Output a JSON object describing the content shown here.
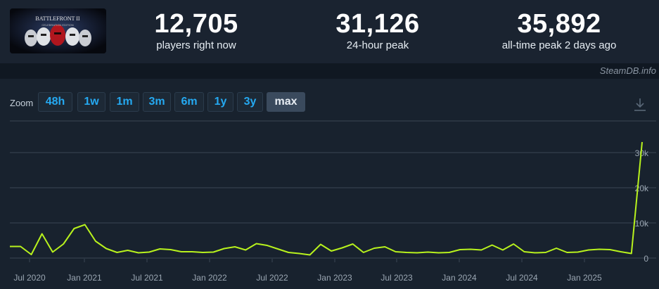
{
  "stats": {
    "current": {
      "value": "12,705",
      "label": "players right now"
    },
    "peak24": {
      "value": "31,126",
      "label": "24-hour peak"
    },
    "alltime": {
      "value": "35,892",
      "label": "all-time peak 2 days ago"
    }
  },
  "watermark": "SteamDB.info",
  "zoom": {
    "label": "Zoom",
    "options": [
      "48h",
      "1w",
      "1m",
      "3m",
      "6m",
      "1y",
      "3y",
      "max"
    ],
    "active": "max"
  },
  "icons": {
    "download": "download-icon",
    "thumbnail": "game-capsule-image"
  },
  "colors": {
    "line": "#b8f21d",
    "button_text": "#25a9f1",
    "grid": "#3a4654",
    "axis_text": "#9aa6b2"
  },
  "chart_data": {
    "type": "line",
    "title": "",
    "xlabel": "",
    "ylabel": "",
    "x_tick_labels": [
      "Jul 2020",
      "Jan 2021",
      "Jul 2021",
      "Jan 2022",
      "Jul 2022",
      "Jan 2023",
      "Jul 2023",
      "Jan 2024",
      "Jul 2024",
      "Jan 2025"
    ],
    "y_tick_labels": [
      "0",
      "10k",
      "20k",
      "30k"
    ],
    "ylim": [
      0,
      39000
    ],
    "grid": true,
    "series": [
      {
        "values": [
          3300,
          3300,
          1000,
          6900,
          1700,
          4000,
          8400,
          9500,
          4800,
          2700,
          1600,
          2200,
          1500,
          1700,
          2600,
          2400,
          1800,
          1800,
          1600,
          1700,
          2700,
          3200,
          2300,
          4100,
          3600,
          2600,
          1600,
          1300,
          900,
          3900,
          2000,
          2900,
          4000,
          1600,
          2800,
          3200,
          1800,
          1600,
          1500,
          1700,
          1500,
          1600,
          2400,
          2500,
          2300,
          3700,
          2300,
          4000,
          1800,
          1500,
          1600,
          2800,
          1600,
          1700,
          2300,
          2500,
          2400,
          1800,
          1300,
          33000
        ]
      }
    ]
  }
}
